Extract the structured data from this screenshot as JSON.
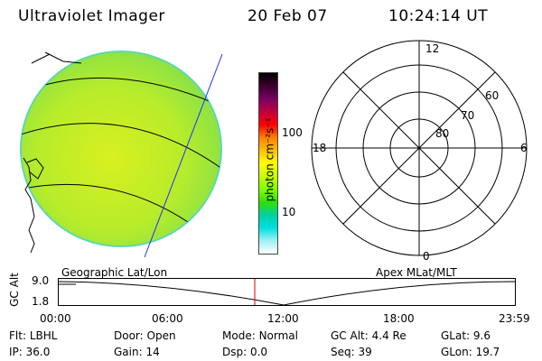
{
  "header": {
    "title": "Ultraviolet Imager",
    "date": "20 Feb 07",
    "time": "10:24:14 UT"
  },
  "colorbar": {
    "label": "photon cm⁻²s⁻¹",
    "ticks": [
      "100",
      "10"
    ],
    "colors": [
      "#000000",
      "#3a0030",
      "#7a0060",
      "#c00040",
      "#ff0000",
      "#ff8000",
      "#ffc000",
      "#ffff00",
      "#c8ff00",
      "#80ff00",
      "#30e000",
      "#00d0a0",
      "#00e0e0",
      "#a0f0f0",
      "#ffffff"
    ]
  },
  "polar": {
    "labels": {
      "top": "12",
      "left": "18",
      "right": "6",
      "bottom": "0"
    },
    "ring_labels": [
      "60",
      "70",
      "80"
    ]
  },
  "labels": {
    "geographic": "Geographic Lat/Lon",
    "apex": "Apex MLat/MLT"
  },
  "timeline": {
    "axis_label": "GC Alt",
    "y_ticks": [
      "9.0",
      "1.8"
    ],
    "x_ticks": [
      "00:00",
      "06:00",
      "12:00",
      "18:00",
      "23:59"
    ]
  },
  "info": {
    "row1": [
      {
        "label": "Flt:",
        "value": "LBHL"
      },
      {
        "label": "Door:",
        "value": "Open"
      },
      {
        "label": "Mode:",
        "value": "Normal"
      },
      {
        "label": "GC Alt:",
        "value": "4.4 Re"
      },
      {
        "label": "GLat:",
        "value": "9.6"
      }
    ],
    "row2": [
      {
        "label": "IP:",
        "value": "36.0"
      },
      {
        "label": "Gain:",
        "value": "14"
      },
      {
        "label": "Dsp:",
        "value": "0.0"
      },
      {
        "label": "Seq:",
        "value": "39"
      },
      {
        "label": "GLon:",
        "value": "19.7"
      }
    ]
  }
}
